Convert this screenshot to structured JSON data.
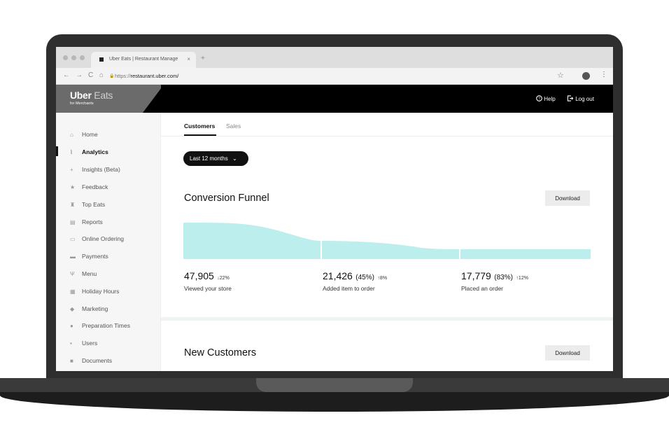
{
  "browser": {
    "tab_title": "Uber Eats | Restaurant Manage",
    "tab_close": "×",
    "new_tab": "+",
    "url_prefix": "https://",
    "url_domain": "restaurant.uber.com/",
    "back": "←",
    "forward": "→",
    "reload": "C",
    "home": "⌂",
    "lock": "🔒",
    "star": "☆",
    "menu": "⋮"
  },
  "header": {
    "brand_uber": "Uber",
    "brand_eats": "Eats",
    "brand_sub": "for Merchants",
    "help": "Help",
    "logout": "Log out"
  },
  "sidebar": {
    "items": [
      {
        "label": "Home",
        "icon": "⌂"
      },
      {
        "label": "Analytics",
        "icon": "⌇"
      },
      {
        "label": "Insights (Beta)",
        "icon": "+"
      },
      {
        "label": "Feedback",
        "icon": "★"
      },
      {
        "label": "Top Eats",
        "icon": "♜"
      },
      {
        "label": "Reports",
        "icon": "▤"
      },
      {
        "label": "Online Ordering",
        "icon": "▭"
      },
      {
        "label": "Payments",
        "icon": "▬"
      },
      {
        "label": "Menu",
        "icon": "Ψ"
      },
      {
        "label": "Holiday Hours",
        "icon": "▦"
      },
      {
        "label": "Marketing",
        "icon": "◆"
      },
      {
        "label": "Preparation Times",
        "icon": "●"
      },
      {
        "label": "Users",
        "icon": "▪"
      },
      {
        "label": "Documents",
        "icon": "■"
      }
    ],
    "active_index": 1
  },
  "main": {
    "tabs": [
      "Customers",
      "Sales"
    ],
    "period": "Last 12 months",
    "period_chevron": "⌄",
    "funnel_title": "Conversion Funnel",
    "download": "Download",
    "new_customers_title": "New Customers",
    "stats": [
      {
        "value": "47,905",
        "pct": "",
        "delta": "↓22%",
        "label": "Viewed your store"
      },
      {
        "value": "21,426",
        "pct": "(45%)",
        "delta": "↑8%",
        "label": "Added item to order"
      },
      {
        "value": "17,779",
        "pct": "(83%)",
        "delta": "↑12%",
        "label": "Placed an order"
      }
    ]
  },
  "colors": {
    "funnel": "#bdeeee",
    "header": "#000000"
  }
}
